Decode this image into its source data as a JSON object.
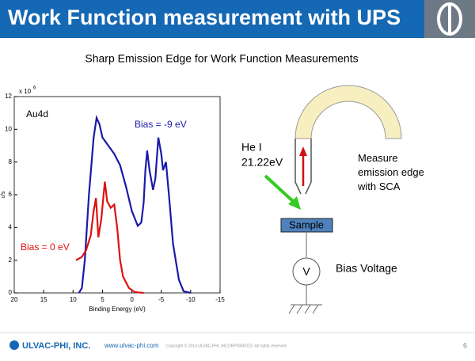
{
  "header": {
    "title": "Work Function measurement with UPS"
  },
  "chart_data": {
    "type": "line",
    "title": "Sharp Emission Edge for Work Function Measurements",
    "panel_label": "Au4d",
    "xlabel": "Binding Energy (eV)",
    "ylabel": "c/s",
    "y_multiplier": "x 10",
    "y_exponent": "6",
    "xlim": [
      20,
      -15
    ],
    "xticks": [
      20,
      15,
      10,
      5,
      0,
      -5,
      -10,
      -15
    ],
    "ylim": [
      0,
      12
    ],
    "yticks": [
      0,
      2,
      4,
      6,
      8,
      10,
      12
    ],
    "series": [
      {
        "name": "Bias = -9 eV",
        "color": "#1a1aaa",
        "x": [
          9,
          8.5,
          8,
          7.3,
          6.5,
          6,
          5.5,
          5,
          4,
          3,
          2,
          1,
          0,
          -1,
          -1.6,
          -2,
          -2.3,
          -2.6,
          -3,
          -3.6,
          -4,
          -4.5,
          -5,
          -5.3,
          -5.8,
          -6.3,
          -7,
          -8,
          -8.8,
          -10
        ],
        "values": [
          0,
          0.3,
          2,
          6,
          9.5,
          10.7,
          10.3,
          9.5,
          9,
          8.5,
          7.8,
          6.5,
          5,
          4.1,
          4.3,
          5.5,
          7.5,
          8.7,
          7.5,
          6.3,
          7,
          9.5,
          8.5,
          7.5,
          8,
          6,
          3,
          0.8,
          0.1,
          0
        ]
      },
      {
        "name": "Bias = 0 eV",
        "color": "#dd1111",
        "x": [
          9.5,
          8.5,
          7.8,
          7,
          6.5,
          6.1,
          5.7,
          5.2,
          4.6,
          4.2,
          3.6,
          3,
          2.5,
          2,
          1.5,
          0.5,
          -0.5,
          -2
        ],
        "values": [
          2,
          2.2,
          2.6,
          3.5,
          5,
          5.8,
          3.4,
          4.5,
          6.8,
          5.6,
          5.2,
          5.4,
          4,
          2,
          1,
          0.3,
          0.05,
          0
        ]
      }
    ]
  },
  "diagram": {
    "source": "He I",
    "energy": "21.22eV",
    "detector_note": "Measure\nemission edge\nwith SCA",
    "sample": "Sample",
    "meter": "V",
    "bias": "Bias Voltage"
  },
  "footer": {
    "company": "ULVAC-PHI, INC.",
    "url": "www.ulvac-phi.com",
    "copyright": "Copyright © 2014 ULVAC-PHI, INCORPORATED. All rights reserved",
    "page": "6"
  }
}
